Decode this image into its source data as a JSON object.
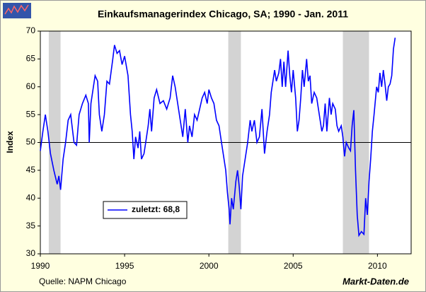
{
  "chart_data": {
    "type": "line",
    "title": "Einkaufsmanagerindex Chicago, SA; 1990 -  Jan. 2011",
    "y_label": "Index",
    "source": "Quelle: NAPM Chicago",
    "watermark": "Markt-Daten.de",
    "xlim": [
      1990,
      2012
    ],
    "xticks": [
      1990,
      1995,
      2000,
      2005,
      2010
    ],
    "ylim": [
      30,
      70
    ],
    "yticks": [
      30,
      35,
      40,
      45,
      50,
      55,
      60,
      65,
      70
    ],
    "reference_line": 50,
    "shaded_periods": [
      [
        1990.5,
        1991.2
      ],
      [
        2001.15,
        2001.9
      ],
      [
        2007.95,
        2009.5
      ]
    ],
    "shade_color": "#d3d3d3",
    "x": [
      1990.0,
      1990.15,
      1990.3,
      1990.45,
      1990.6,
      1990.8,
      1991.0,
      1991.1,
      1991.2,
      1991.35,
      1991.5,
      1991.65,
      1991.8,
      1992.0,
      1992.15,
      1992.3,
      1992.5,
      1992.7,
      1992.85,
      1992.9,
      1993.0,
      1993.15,
      1993.25,
      1993.4,
      1993.5,
      1993.65,
      1993.8,
      1993.95,
      1994.1,
      1994.3,
      1994.4,
      1994.55,
      1994.7,
      1994.85,
      1995.0,
      1995.2,
      1995.35,
      1995.45,
      1995.55,
      1995.65,
      1995.8,
      1995.9,
      1996.0,
      1996.15,
      1996.25,
      1996.4,
      1996.5,
      1996.6,
      1996.75,
      1996.9,
      1997.1,
      1997.3,
      1997.5,
      1997.7,
      1997.85,
      1998.0,
      1998.15,
      1998.3,
      1998.45,
      1998.6,
      1998.75,
      1998.85,
      1999.0,
      1999.15,
      1999.3,
      1999.45,
      1999.6,
      1999.75,
      1999.9,
      2000.0,
      2000.15,
      2000.3,
      2000.45,
      2000.6,
      2000.75,
      2000.85,
      2001.0,
      2001.1,
      2001.2,
      2001.25,
      2001.35,
      2001.45,
      2001.6,
      2001.7,
      2001.8,
      2001.9,
      2002.0,
      2002.15,
      2002.3,
      2002.45,
      2002.55,
      2002.7,
      2002.85,
      2003.0,
      2003.15,
      2003.3,
      2003.45,
      2003.6,
      2003.7,
      2003.8,
      2003.9,
      2004.0,
      2004.15,
      2004.25,
      2004.35,
      2004.45,
      2004.55,
      2004.7,
      2004.8,
      2004.9,
      2005.0,
      2005.15,
      2005.25,
      2005.35,
      2005.45,
      2005.55,
      2005.65,
      2005.8,
      2005.9,
      2006.0,
      2006.1,
      2006.25,
      2006.4,
      2006.5,
      2006.6,
      2006.7,
      2006.8,
      2006.9,
      2007.0,
      2007.15,
      2007.25,
      2007.35,
      2007.5,
      2007.6,
      2007.7,
      2007.85,
      2007.95,
      2008.05,
      2008.15,
      2008.3,
      2008.4,
      2008.5,
      2008.6,
      2008.7,
      2008.8,
      2008.9,
      2009.05,
      2009.2,
      2009.3,
      2009.4,
      2009.5,
      2009.6,
      2009.7,
      2009.8,
      2009.95,
      2010.05,
      2010.15,
      2010.25,
      2010.35,
      2010.45,
      2010.55,
      2010.65,
      2010.75,
      2010.85,
      2010.95,
      2011.05
    ],
    "series": [
      {
        "name": "zuletzt: 68,8",
        "color": "#0000ff",
        "values": [
          48.5,
          52,
          55,
          52,
          48,
          45,
          42.5,
          44,
          41.5,
          47,
          50,
          54,
          55,
          50,
          49.5,
          55,
          57,
          58.5,
          57,
          50,
          57,
          60,
          62,
          61,
          55,
          52,
          55,
          61,
          60.5,
          65,
          67.5,
          66,
          66.5,
          64,
          65.5,
          62,
          55,
          52,
          47,
          51,
          49,
          52,
          47,
          48,
          50,
          53,
          56,
          52,
          58,
          59.5,
          57,
          57.5,
          56,
          58,
          62,
          60,
          57,
          54,
          51,
          56,
          50,
          53,
          51,
          55,
          54,
          56,
          58,
          59,
          57,
          59.5,
          58,
          57,
          54,
          53,
          50,
          48,
          45,
          41,
          38,
          35.3,
          40,
          38,
          43,
          45,
          42,
          38,
          44,
          47,
          50,
          54,
          52,
          54,
          50,
          51,
          56,
          48,
          52,
          55,
          59,
          61,
          63,
          61,
          62.5,
          65,
          60,
          64.5,
          60,
          66.5,
          62,
          59,
          63,
          58,
          52,
          54,
          58,
          63,
          60,
          65,
          61,
          62,
          57,
          59,
          58,
          56,
          54,
          52,
          53,
          57,
          52,
          58,
          55,
          57,
          56,
          53,
          52,
          53,
          51,
          47.5,
          50,
          49,
          48.5,
          53,
          55.8,
          45,
          37,
          33.3,
          34,
          33.5,
          40,
          37,
          43,
          47,
          52,
          55,
          60,
          59,
          62.5,
          60,
          63,
          60.5,
          57.5,
          60,
          60.5,
          62,
          66.8,
          68.8
        ]
      }
    ]
  }
}
